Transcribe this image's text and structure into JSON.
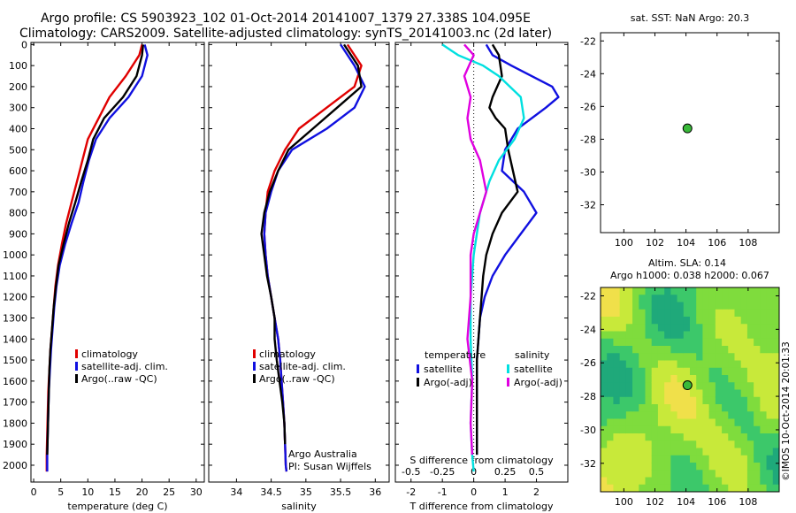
{
  "figure": {
    "title_line1": "Argo profile: CS 5903923_102 01-Oct-2014 20141007_1379 27.338S 104.095E",
    "title_line2": "Climatology: CARS2009. Satellite-adjusted climatology: synTS_20141003.nc (2d later)",
    "side_label": "©IMOS 10-Oct-2014 20:01:33"
  },
  "chart_data": [
    {
      "type": "line",
      "panel": "temperature",
      "xlabel": "temperature (deg C)",
      "xlim": [
        -0.5,
        31.5
      ],
      "xticks": [
        0,
        5,
        10,
        15,
        20,
        25,
        30
      ],
      "ylim": [
        2080,
        -10
      ],
      "yticks": [
        0,
        100,
        200,
        300,
        400,
        500,
        600,
        700,
        800,
        900,
        1000,
        1100,
        1200,
        1300,
        1400,
        1500,
        1600,
        1700,
        1800,
        1900,
        2000
      ],
      "legend": [
        "climatology",
        "satellite-adj. clim.",
        "Argo(..raw -QC)"
      ],
      "series": [
        {
          "name": "climatology",
          "color": "#e00000",
          "x": [
            20.0,
            19.5,
            17.0,
            14.0,
            12.0,
            10.0,
            9.0,
            8.0,
            7.0,
            6.0,
            5.2,
            4.5,
            4.0,
            3.7,
            3.4,
            3.1,
            2.9,
            2.7,
            2.6,
            2.5,
            2.4,
            2.4
          ],
          "y": [
            0,
            50,
            150,
            250,
            350,
            450,
            550,
            650,
            750,
            850,
            950,
            1050,
            1150,
            1250,
            1350,
            1450,
            1550,
            1650,
            1750,
            1850,
            1950,
            2030
          ]
        },
        {
          "name": "satellite-adj. clim.",
          "color": "#1010e0",
          "x": [
            20.5,
            21.0,
            20.0,
            17.5,
            14.0,
            11.5,
            10.2,
            9.2,
            8.3,
            7.0,
            5.8,
            4.8,
            4.2,
            3.8,
            3.5,
            3.2,
            3.0,
            2.8,
            2.7,
            2.6,
            2.5,
            2.5
          ],
          "y": [
            0,
            50,
            150,
            250,
            350,
            450,
            550,
            650,
            750,
            850,
            950,
            1050,
            1150,
            1250,
            1350,
            1450,
            1550,
            1650,
            1750,
            1850,
            1950,
            2030
          ]
        },
        {
          "name": "Argo(..raw -QC)",
          "color": "#000000",
          "x": [
            20.2,
            20.0,
            19.0,
            16.5,
            13.0,
            11.0,
            10.0,
            8.8,
            7.7,
            6.5,
            5.5,
            4.6,
            4.1,
            3.7,
            3.4,
            3.1,
            2.9,
            2.8,
            2.7,
            2.6,
            2.5
          ],
          "y": [
            0,
            50,
            150,
            250,
            350,
            450,
            550,
            650,
            750,
            850,
            950,
            1050,
            1150,
            1250,
            1350,
            1450,
            1550,
            1650,
            1750,
            1850,
            1950
          ]
        }
      ]
    },
    {
      "type": "line",
      "panel": "salinity",
      "xlabel": "salinity",
      "xlim": [
        33.6,
        36.2
      ],
      "xticks": [
        34,
        34.5,
        35,
        35.5,
        36
      ],
      "ylim": [
        2080,
        -10
      ],
      "legend": [
        "climatology",
        "satellite-adj. clim.",
        "Argo(..raw -QC)"
      ],
      "annotations": [
        "Argo Australia",
        "PI: Susan Wijffels"
      ],
      "series": [
        {
          "name": "climatology",
          "color": "#e00000",
          "x": [
            35.6,
            35.8,
            35.7,
            35.3,
            34.9,
            34.7,
            34.55,
            34.45,
            34.42,
            34.4,
            34.42,
            34.45,
            34.5,
            34.55,
            34.6,
            34.63,
            34.65,
            34.67,
            34.69,
            34.7,
            34.71,
            34.72
          ],
          "y": [
            0,
            100,
            200,
            300,
            400,
            500,
            600,
            700,
            800,
            900,
            1000,
            1100,
            1200,
            1300,
            1400,
            1500,
            1600,
            1700,
            1800,
            1900,
            2000,
            2030
          ]
        },
        {
          "name": "satellite-adj. clim.",
          "color": "#1010e0",
          "x": [
            35.5,
            35.7,
            35.85,
            35.7,
            35.3,
            34.8,
            34.6,
            34.5,
            34.42,
            34.4,
            34.42,
            34.45,
            34.5,
            34.55,
            34.6,
            34.63,
            34.65,
            34.67,
            34.69,
            34.7,
            34.71,
            34.72
          ],
          "y": [
            0,
            100,
            200,
            300,
            400,
            500,
            600,
            700,
            800,
            900,
            1000,
            1100,
            1200,
            1300,
            1400,
            1500,
            1600,
            1700,
            1800,
            1900,
            2000,
            2030
          ]
        },
        {
          "name": "Argo(..raw -QC)",
          "color": "#000000",
          "x": [
            35.55,
            35.75,
            35.8,
            35.45,
            35.1,
            34.75,
            34.6,
            34.48,
            34.4,
            34.36,
            34.4,
            34.44,
            34.5,
            34.55,
            34.55,
            34.58,
            34.62,
            34.66,
            34.69,
            34.7
          ],
          "y": [
            0,
            100,
            200,
            300,
            400,
            500,
            600,
            700,
            800,
            900,
            1000,
            1100,
            1200,
            1300,
            1400,
            1500,
            1600,
            1700,
            1800,
            1900
          ]
        }
      ]
    },
    {
      "type": "line",
      "panel": "difference",
      "xlabel": "T difference from climatology",
      "xlabel_top": "S difference from climatology",
      "xlim": [
        -2.5,
        3.0
      ],
      "xticks": [
        -2,
        -1,
        0,
        1,
        2
      ],
      "xticks_s": [
        -0.5,
        -0.25,
        0,
        0.25,
        0.5
      ],
      "ylim": [
        2080,
        -10
      ],
      "legend_headers": [
        "temperature",
        "salinity"
      ],
      "legend": [
        "satellite",
        "Argo(-adj)",
        "satellite",
        "Argo(-adj)"
      ],
      "series": [
        {
          "name": "satellite",
          "color": "#1010e0",
          "group": "temperature",
          "x": [
            0.4,
            0.6,
            1.2,
            2.5,
            2.7,
            2.3,
            1.4,
            1.0,
            0.9,
            1.6,
            2.0,
            1.5,
            1.0,
            0.6,
            0.35,
            0.2,
            0.15,
            0.1,
            0.1,
            0.1,
            0.1
          ],
          "y": [
            0,
            50,
            100,
            200,
            250,
            300,
            400,
            500,
            600,
            700,
            800,
            900,
            1000,
            1100,
            1200,
            1300,
            1400,
            1500,
            1600,
            1800,
            1950
          ]
        },
        {
          "name": "Argo(-adj)",
          "color": "#000000",
          "group": "temperature",
          "x": [
            0.6,
            0.8,
            0.9,
            0.6,
            0.5,
            0.7,
            1.0,
            1.1,
            1.4,
            0.9,
            0.6,
            0.4,
            0.3,
            0.2,
            0.1,
            0.1,
            0.1
          ],
          "y": [
            0,
            50,
            150,
            250,
            300,
            350,
            400,
            500,
            700,
            800,
            900,
            1000,
            1100,
            1300,
            1500,
            1700,
            1950
          ]
        },
        {
          "name": "satellite",
          "color": "#00e0e0",
          "group": "salinity",
          "x": [
            -1.0,
            -0.5,
            0.3,
            0.8,
            1.5,
            1.6,
            1.3,
            0.8,
            0.5,
            0.2,
            0.0,
            -0.1,
            -0.1,
            -0.05,
            -0.1,
            -0.05,
            0.0
          ],
          "y": [
            0,
            50,
            100,
            150,
            250,
            350,
            450,
            550,
            650,
            800,
            1000,
            1200,
            1400,
            1600,
            1800,
            1950,
            2030
          ]
        },
        {
          "name": "Argo(-adj)",
          "color": "#e000e0",
          "group": "salinity",
          "x": [
            -0.3,
            0.0,
            -0.3,
            -0.1,
            -0.2,
            -0.1,
            0.2,
            0.4,
            0.2,
            0.0,
            -0.1,
            -0.1,
            -0.2,
            -0.05,
            -0.1,
            -0.05
          ],
          "y": [
            0,
            50,
            150,
            250,
            350,
            450,
            550,
            700,
            800,
            900,
            1000,
            1200,
            1400,
            1600,
            1800,
            1950
          ]
        }
      ]
    },
    {
      "type": "scatter",
      "panel": "sat_sst_map",
      "title": "sat. SST: NaN Argo: 20.3",
      "xlim": [
        98.5,
        110
      ],
      "ylim": [
        -33.7,
        -21.5
      ],
      "xticks": [
        100,
        102,
        104,
        106,
        108
      ],
      "yticks": [
        -22,
        -24,
        -26,
        -28,
        -30,
        -32
      ],
      "point": {
        "x": 104.095,
        "y": -27.338,
        "color": "#39b939"
      }
    },
    {
      "type": "heatmap",
      "panel": "altimetry_map",
      "title_line1": "Altim. SLA: 0.14",
      "title_line2": "Argo h1000: 0.038 h2000: 0.067",
      "xlim": [
        98.5,
        110
      ],
      "ylim": [
        -33.7,
        -21.5
      ],
      "xticks": [
        100,
        102,
        104,
        106,
        108
      ],
      "yticks": [
        -22,
        -24,
        -26,
        -28,
        -30,
        -32
      ],
      "point": {
        "x": 104.095,
        "y": -27.338,
        "color": "#39b939"
      },
      "palette": [
        "#1fa97a",
        "#3cc86a",
        "#7fdc3d",
        "#c8e93a",
        "#f0e04a"
      ]
    }
  ]
}
